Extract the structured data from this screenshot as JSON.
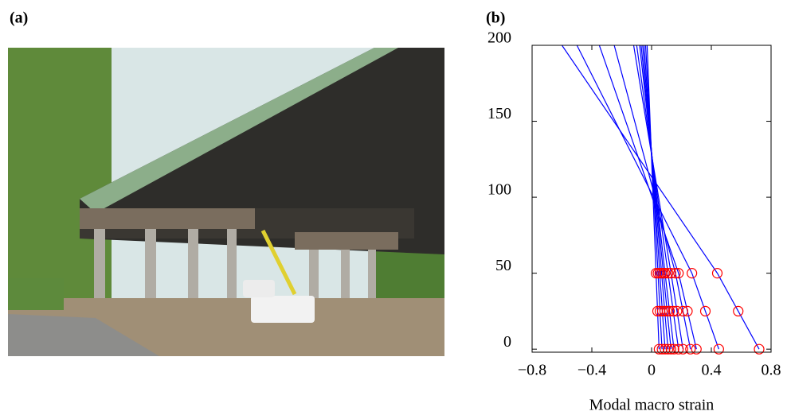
{
  "panel_a": {
    "label": "(a)"
  },
  "chart_data": {
    "type": "line",
    "panel_label": "(b)",
    "xlabel": "Modal macro strain",
    "xlim": [
      -0.8,
      0.8
    ],
    "xticks": [
      {
        "value": -0.8,
        "label": "−0.8"
      },
      {
        "value": -0.4,
        "label": "−0.4"
      },
      0,
      0.4,
      0.8
    ],
    "ylim": [
      -2,
      200
    ],
    "yticks": [
      0,
      50,
      100,
      150,
      200
    ],
    "y": [
      0,
      25,
      50,
      200
    ],
    "marker_y": [
      0,
      25,
      50
    ],
    "line_color": "#0000ff",
    "marker_color": "#ff0000",
    "series": [
      {
        "values": [
          0.05,
          0.04,
          0.03,
          -0.03
        ]
      },
      {
        "values": [
          0.07,
          0.056,
          0.043,
          -0.04
        ]
      },
      {
        "values": [
          0.09,
          0.072,
          0.055,
          -0.05
        ]
      },
      {
        "values": [
          0.11,
          0.088,
          0.067,
          -0.06
        ]
      },
      {
        "values": [
          0.13,
          0.104,
          0.079,
          -0.07
        ]
      },
      {
        "values": [
          0.15,
          0.12,
          0.09,
          -0.08
        ]
      },
      {
        "values": [
          0.18,
          0.145,
          0.11,
          -0.1
        ]
      },
      {
        "values": [
          0.21,
          0.17,
          0.13,
          -0.12
        ]
      },
      {
        "values": [
          0.26,
          0.21,
          0.16,
          -0.25
        ]
      },
      {
        "values": [
          0.3,
          0.24,
          0.18,
          -0.35
        ]
      },
      {
        "values": [
          0.45,
          0.36,
          0.27,
          -0.5
        ]
      },
      {
        "values": [
          0.72,
          0.58,
          0.44,
          -0.6
        ]
      }
    ]
  }
}
